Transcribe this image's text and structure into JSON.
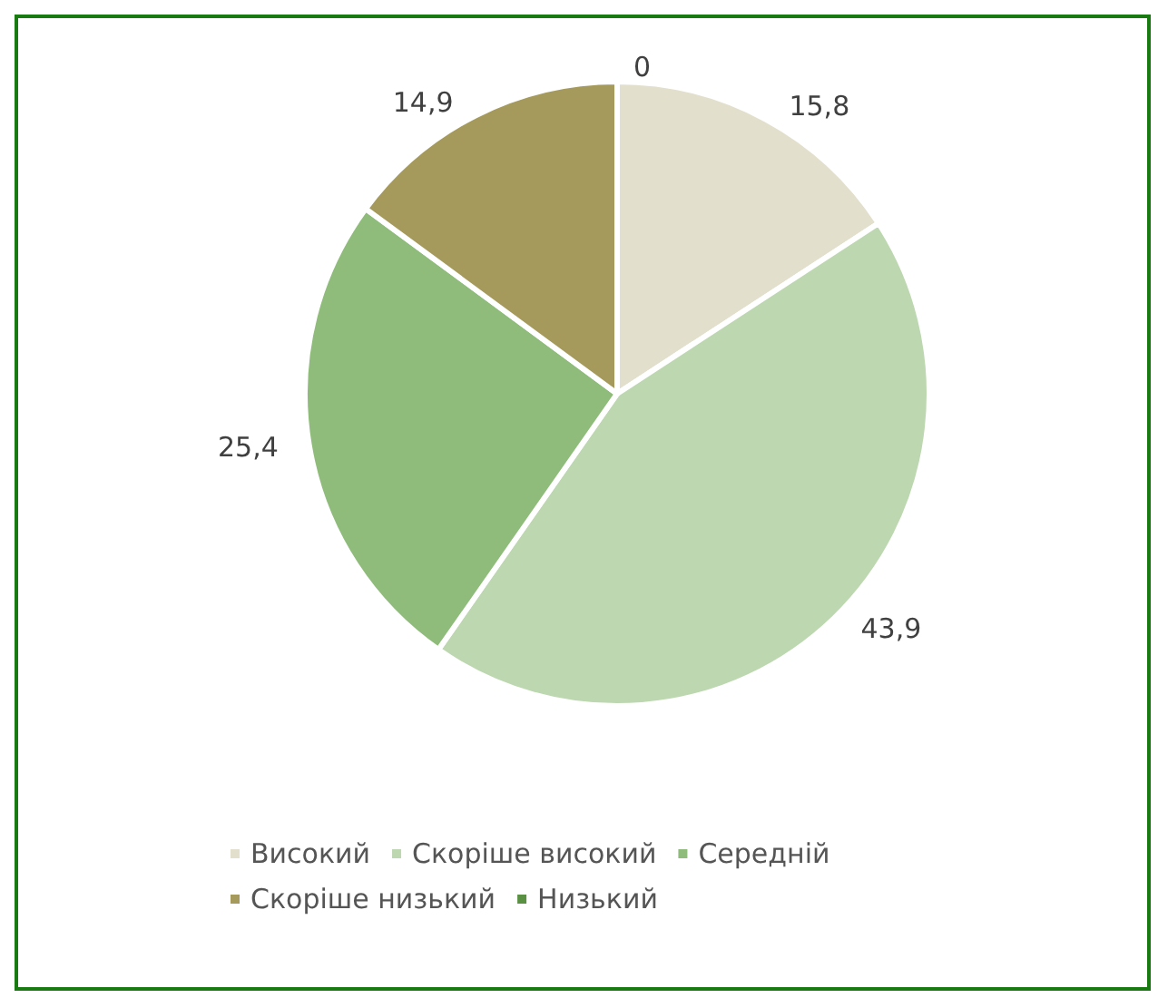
{
  "chart_data": {
    "type": "pie",
    "categories": [
      "Високий",
      "Скоріше високий",
      "Середній",
      "Скоріше низький",
      "Низький"
    ],
    "values": [
      15.8,
      43.9,
      25.4,
      14.9,
      0
    ],
    "colors": [
      "#e2dfcc",
      "#bdd7b0",
      "#8fbc7a",
      "#a59a5c",
      "#5a9042"
    ],
    "value_labels": [
      "15,8",
      "43,9",
      "25,4",
      "14,9",
      "0"
    ],
    "legend": "bottom"
  }
}
